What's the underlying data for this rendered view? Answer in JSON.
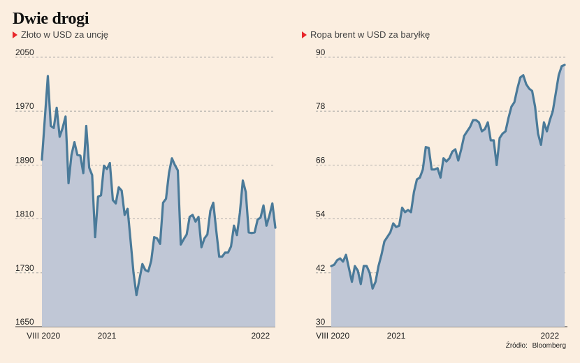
{
  "title": "Dwie drogi",
  "source": {
    "label": "Źródło:",
    "value": "Bloomberg"
  },
  "colors": {
    "line": "#4a7a99",
    "area": "#c0c7d6",
    "marker": "#e8262a",
    "background": "#fbeee0"
  },
  "chart_data": [
    {
      "type": "area",
      "subtitle": "Złoto w USD za uncję",
      "ylim": [
        1650,
        2050
      ],
      "yticks": [
        1650,
        1730,
        1810,
        1890,
        1970,
        2050
      ],
      "xticklabels": [
        {
          "label": "VIII 2020",
          "pos": 0.5
        },
        {
          "label": "2021",
          "pos": 22
        },
        {
          "label": "2022",
          "pos": 74
        }
      ],
      "values": [
        1898,
        1960,
        2022,
        1948,
        1945,
        1975,
        1932,
        1945,
        1962,
        1863,
        1905,
        1924,
        1905,
        1904,
        1878,
        1948,
        1886,
        1875,
        1783,
        1843,
        1845,
        1889,
        1884,
        1893,
        1838,
        1833,
        1857,
        1852,
        1816,
        1825,
        1778,
        1730,
        1697,
        1720,
        1743,
        1734,
        1732,
        1748,
        1783,
        1781,
        1773,
        1834,
        1840,
        1878,
        1900,
        1890,
        1882,
        1772,
        1780,
        1787,
        1813,
        1816,
        1806,
        1813,
        1768,
        1781,
        1787,
        1822,
        1834,
        1793,
        1754,
        1754,
        1760,
        1760,
        1769,
        1800,
        1786,
        1819,
        1867,
        1850,
        1790,
        1789,
        1790,
        1809,
        1812,
        1830,
        1800,
        1815,
        1833,
        1797
      ]
    },
    {
      "type": "area",
      "subtitle": "Ropa brent w USD za baryłkę",
      "ylim": [
        30,
        90
      ],
      "yticks": [
        30,
        42,
        54,
        66,
        78,
        90
      ],
      "xticklabels": [
        {
          "label": "VIII 2020",
          "pos": 0.5
        },
        {
          "label": "2021",
          "pos": 22
        },
        {
          "label": "2022",
          "pos": 74
        }
      ],
      "values": [
        43.5,
        43.8,
        44.8,
        45.2,
        44.5,
        46,
        43,
        40,
        43.5,
        42.5,
        39.5,
        43.5,
        43.5,
        42,
        38.5,
        40,
        43.5,
        46,
        49,
        50,
        51,
        53,
        52.2,
        52.5,
        56.5,
        55.5,
        56,
        55.5,
        60,
        62.8,
        63.2,
        65,
        70,
        69.8,
        65,
        65,
        65.3,
        63.2,
        67.5,
        66.8,
        67.5,
        69,
        69.5,
        67,
        69.5,
        72.5,
        73.5,
        74.5,
        76,
        76,
        75.5,
        73.5,
        74,
        75.5,
        71.5,
        71.5,
        66,
        72,
        73,
        73.5,
        76.5,
        79,
        80,
        83,
        85.5,
        86,
        84,
        83,
        82.5,
        79,
        73,
        70.5,
        75.5,
        73.5,
        76,
        78,
        82,
        86,
        88,
        88.3
      ]
    }
  ]
}
